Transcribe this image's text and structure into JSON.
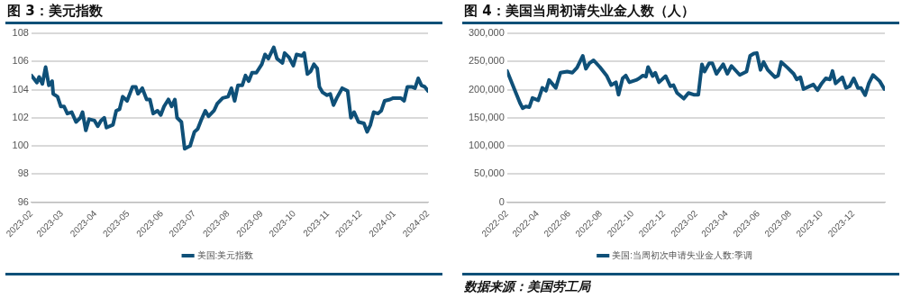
{
  "chart_data": [
    {
      "type": "line",
      "title": "图 3：美元指数",
      "legend": "bottom",
      "grid": "y",
      "marker": "none",
      "line_style": "solid",
      "xlim": [
        "2023-02-01",
        "2024-02-01"
      ],
      "xticks": [
        "2023-02",
        "2023-03",
        "2023-04",
        "2023-05",
        "2023-06",
        "2023-07",
        "2023-08",
        "2023-09",
        "2023-10",
        "2023-11",
        "2023-12",
        "2024-01",
        "2024-02"
      ],
      "ylim": [
        96,
        108
      ],
      "yticks": [
        96,
        98,
        100,
        102,
        104,
        106,
        108
      ],
      "x": [
        "2023-02-01",
        "2023-02-03",
        "2023-02-06",
        "2023-02-08",
        "2023-02-11",
        "2023-02-14",
        "2023-02-17",
        "2023-02-20",
        "2023-02-21",
        "2023-02-25",
        "2023-02-28",
        "2023-03-03",
        "2023-03-06",
        "2023-03-10",
        "2023-03-14",
        "2023-03-18",
        "2023-03-20",
        "2023-03-23",
        "2023-03-26",
        "2023-03-31",
        "2023-04-03",
        "2023-04-06",
        "2023-04-09",
        "2023-04-11",
        "2023-04-17",
        "2023-04-20",
        "2023-04-23",
        "2023-04-26",
        "2023-04-30",
        "2023-05-05",
        "2023-05-08",
        "2023-05-10",
        "2023-05-14",
        "2023-05-18",
        "2023-05-21",
        "2023-05-24",
        "2023-05-28",
        "2023-05-31",
        "2023-06-03",
        "2023-06-07",
        "2023-06-10",
        "2023-06-13",
        "2023-06-15",
        "2023-06-19",
        "2023-06-22",
        "2023-06-27",
        "2023-07-01",
        "2023-07-04",
        "2023-07-07",
        "2023-07-11",
        "2023-07-14",
        "2023-07-19",
        "2023-07-22",
        "2023-07-27",
        "2023-08-01",
        "2023-08-04",
        "2023-08-07",
        "2023-08-10",
        "2023-08-14",
        "2023-08-17",
        "2023-08-20",
        "2023-08-23",
        "2023-08-27",
        "2023-09-01",
        "2023-09-04",
        "2023-09-07",
        "2023-09-12",
        "2023-09-15",
        "2023-09-20",
        "2023-09-22",
        "2023-09-26",
        "2023-09-30",
        "2023-10-03",
        "2023-10-08",
        "2023-10-10",
        "2023-10-13",
        "2023-10-16",
        "2023-10-19",
        "2023-10-22",
        "2023-10-24",
        "2023-10-27",
        "2023-10-31",
        "2023-11-03",
        "2023-11-06",
        "2023-11-09",
        "2023-11-14",
        "2023-11-19",
        "2023-11-22",
        "2023-11-25",
        "2023-11-29",
        "2023-12-04",
        "2023-12-07",
        "2023-12-10",
        "2023-12-13",
        "2023-12-17",
        "2023-12-20",
        "2023-12-23",
        "2023-12-28",
        "2023-12-31",
        "2024-01-07",
        "2024-01-10",
        "2024-01-13",
        "2024-01-17",
        "2024-01-20",
        "2024-01-23",
        "2024-01-26",
        "2024-01-29",
        "2024-02-01"
      ],
      "series": [
        {
          "name": "美国:美元指数",
          "color": "#0f5078",
          "values": [
            105.0,
            104.8,
            104.5,
            104.9,
            104.4,
            105.6,
            104.3,
            104.6,
            103.7,
            103.5,
            102.8,
            102.8,
            102.3,
            102.4,
            101.7,
            102.0,
            102.4,
            101.1,
            101.9,
            101.8,
            101.4,
            101.8,
            102.0,
            101.3,
            101.5,
            102.5,
            102.6,
            103.5,
            103.2,
            104.2,
            104.2,
            103.7,
            104.1,
            103.3,
            103.3,
            102.3,
            102.5,
            102.2,
            102.8,
            103.3,
            102.8,
            103.3,
            102.0,
            101.7,
            99.8,
            100.0,
            101.0,
            101.2,
            101.8,
            102.5,
            102.1,
            102.5,
            103.0,
            103.4,
            103.5,
            104.1,
            103.2,
            104.3,
            104.3,
            105.0,
            104.6,
            105.2,
            105.2,
            105.8,
            106.5,
            106.2,
            107.0,
            106.2,
            105.9,
            106.6,
            106.3,
            105.7,
            106.5,
            106.4,
            106.6,
            105.1,
            105.3,
            105.8,
            105.5,
            104.2,
            103.8,
            103.6,
            103.7,
            102.9,
            103.4,
            104.1,
            103.9,
            102.0,
            102.4,
            101.7,
            101.6,
            101.0,
            101.5,
            102.4,
            102.3,
            102.5,
            103.2,
            103.3,
            103.4,
            103.4,
            103.2,
            104.2,
            104.2,
            104.1,
            104.8,
            104.3,
            104.2,
            103.9
          ]
        }
      ]
    },
    {
      "type": "line",
      "title": "图 4：美国当周初请失业金人数（人）",
      "legend": "bottom",
      "grid": "y",
      "marker": "none",
      "line_style": "solid",
      "annotations": [
        "数据来源：美国劳工局"
      ],
      "xlim": [
        "2022-02-01",
        "2024-01-31"
      ],
      "xticks": [
        "2022-02",
        "2022-04",
        "2022-06",
        "2022-08",
        "2022-10",
        "2022-12",
        "2023-02",
        "2023-04",
        "2023-06",
        "2023-08",
        "2023-10",
        "2023-12"
      ],
      "ylim": [
        0,
        300000
      ],
      "yticks": [
        0,
        {
          "value": 50000,
          "label": "50,000"
        },
        {
          "value": 100000,
          "label": "100,000"
        },
        {
          "value": 150000,
          "label": "150,000"
        },
        {
          "value": 200000,
          "label": "200,000"
        },
        {
          "value": 250000,
          "label": "250,000"
        },
        {
          "value": 300000,
          "label": "300,000"
        }
      ],
      "x": [
        "2022-02-01",
        "2022-02-15",
        "2022-02-26",
        "2022-03-03",
        "2022-03-09",
        "2022-03-16",
        "2022-03-22",
        "2022-04-02",
        "2022-04-10",
        "2022-04-17",
        "2022-04-23",
        "2022-05-06",
        "2022-05-15",
        "2022-05-28",
        "2022-06-07",
        "2022-06-16",
        "2022-06-27",
        "2022-07-03",
        "2022-07-10",
        "2022-07-18",
        "2022-07-30",
        "2022-08-12",
        "2022-08-21",
        "2022-08-30",
        "2022-09-04",
        "2022-09-12",
        "2022-09-18",
        "2022-09-25",
        "2022-10-08",
        "2022-10-14",
        "2022-10-21",
        "2022-10-27",
        "2022-10-31",
        "2022-11-09",
        "2022-11-14",
        "2022-11-21",
        "2022-12-04",
        "2022-12-13",
        "2022-12-19",
        "2022-12-26",
        "2023-01-08",
        "2023-01-17",
        "2023-01-27",
        "2023-02-05",
        "2023-02-12",
        "2023-02-17",
        "2023-02-26",
        "2023-03-04",
        "2023-03-12",
        "2023-03-25",
        "2023-04-02",
        "2023-04-10",
        "2023-04-26",
        "2023-05-09",
        "2023-05-16",
        "2023-05-23",
        "2023-05-29",
        "2023-06-05",
        "2023-06-11",
        "2023-06-19",
        "2023-07-03",
        "2023-07-09",
        "2023-07-15",
        "2023-07-27",
        "2023-08-08",
        "2023-08-14",
        "2023-08-21",
        "2023-08-27",
        "2023-09-15",
        "2023-09-23",
        "2023-10-01",
        "2023-10-09",
        "2023-10-17",
        "2023-10-22",
        "2023-10-28",
        "2023-11-10",
        "2023-11-17",
        "2023-11-24",
        "2023-12-02",
        "2023-12-10",
        "2023-12-16",
        "2023-12-24",
        "2023-12-31",
        "2024-01-08",
        "2024-01-21",
        "2024-01-30"
      ],
      "series": [
        {
          "name": "美国:当周初次申请失业金人数:季调",
          "color": "#0f5078",
          "values": [
            233000,
            201000,
            176000,
            167000,
            170000,
            169000,
            185000,
            181000,
            203000,
            198000,
            217000,
            203000,
            230000,
            232000,
            230000,
            239000,
            260000,
            237000,
            247000,
            252000,
            240000,
            225000,
            208000,
            213000,
            191000,
            220000,
            225000,
            213000,
            217000,
            220000,
            225000,
            223000,
            240000,
            224000,
            230000,
            213000,
            224000,
            206000,
            208000,
            194000,
            184000,
            194000,
            191000,
            191000,
            245000,
            232000,
            247000,
            247000,
            228000,
            245000,
            228000,
            242000,
            226000,
            232000,
            260000,
            264000,
            265000,
            235000,
            249000,
            235000,
            222000,
            225000,
            249000,
            239000,
            228000,
            218000,
            222000,
            201000,
            209000,
            199000,
            211000,
            220000,
            218000,
            233000,
            211000,
            222000,
            203000,
            206000,
            220000,
            203000,
            203000,
            190000,
            211000,
            226000,
            215000,
            201000
          ]
        }
      ]
    }
  ]
}
